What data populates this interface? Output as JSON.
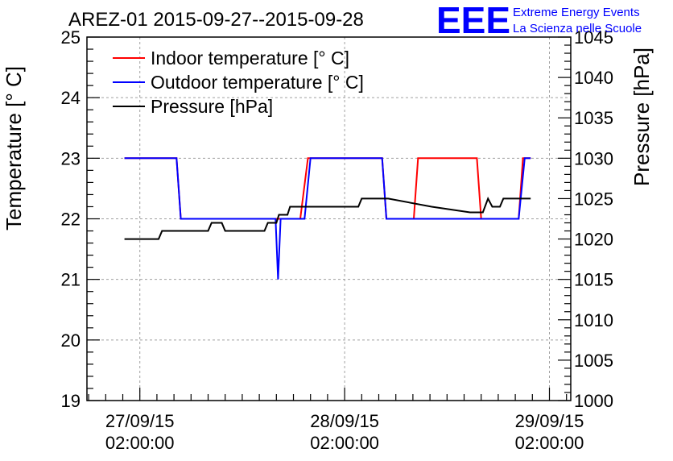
{
  "chart_data": {
    "type": "line",
    "title": "AREZ-01 2015-09-27--2015-09-28",
    "logo_text": "EEE",
    "brand_lines": [
      "Extreme Energy Events",
      "La Scienza nelle Scuole"
    ],
    "brand_color": "#0000ff",
    "y_left_label": "Temperature [° C]",
    "y_right_label": "Pressure [hPa]",
    "y_left_range": [
      19,
      25
    ],
    "y_right_range": [
      1000,
      1045
    ],
    "y_left_ticks": [
      "19",
      "20",
      "21",
      "22",
      "23",
      "24",
      "25"
    ],
    "y_right_ticks": [
      "1000",
      "1005",
      "1010",
      "1015",
      "1020",
      "1025",
      "1030",
      "1035",
      "1040",
      "1045"
    ],
    "x_ticks": [
      {
        "x": 0,
        "date": "27/09/15",
        "time": "02:00:00"
      },
      {
        "x": 24,
        "date": "28/09/15",
        "time": "02:00:00"
      },
      {
        "x": 48,
        "date": "29/09/15",
        "time": "02:00:00"
      }
    ],
    "x_range": [
      -6.2,
      50.5
    ],
    "grid": true,
    "legend_position": "top-left",
    "series": [
      {
        "name": "Indoor temperature [° C]",
        "axis": "left",
        "color": "#ff0000",
        "points": [
          [
            -1.8,
            23
          ],
          [
            4.3,
            23
          ],
          [
            4.8,
            22
          ],
          [
            18.8,
            22
          ],
          [
            19.7,
            23
          ],
          [
            28.4,
            23
          ],
          [
            28.9,
            22
          ],
          [
            32.1,
            22
          ],
          [
            32.6,
            23
          ],
          [
            39.5,
            23
          ],
          [
            40.0,
            22
          ],
          [
            44.4,
            22
          ],
          [
            44.9,
            23
          ],
          [
            45.8,
            23
          ]
        ]
      },
      {
        "name": "Outdoor temperature [° C]",
        "axis": "left",
        "color": "#0000ff",
        "points": [
          [
            -1.8,
            23
          ],
          [
            4.3,
            23
          ],
          [
            4.8,
            22
          ],
          [
            15.9,
            22
          ],
          [
            16.2,
            21
          ],
          [
            16.5,
            22
          ],
          [
            19.2,
            22
          ],
          [
            19.3,
            22.0
          ],
          [
            20.0,
            23
          ],
          [
            28.4,
            23
          ],
          [
            28.9,
            22
          ],
          [
            44.4,
            22
          ],
          [
            45.1,
            23
          ],
          [
            45.8,
            23
          ]
        ]
      },
      {
        "name": "Pressure [hPa]",
        "axis": "right",
        "color": "#000000",
        "points": [
          [
            -1.8,
            1020
          ],
          [
            2.2,
            1020
          ],
          [
            2.6,
            1021
          ],
          [
            8.0,
            1021
          ],
          [
            8.4,
            1022
          ],
          [
            9.6,
            1022
          ],
          [
            10.0,
            1021
          ],
          [
            14.6,
            1021
          ],
          [
            15.0,
            1022
          ],
          [
            16.0,
            1022
          ],
          [
            16.3,
            1023
          ],
          [
            17.3,
            1023
          ],
          [
            17.6,
            1024
          ],
          [
            20.1,
            1024
          ],
          [
            25.6,
            1024
          ],
          [
            26.0,
            1025
          ],
          [
            29.1,
            1025
          ],
          [
            34.2,
            1024
          ],
          [
            38.7,
            1023.3
          ],
          [
            40.2,
            1023.3
          ],
          [
            40.8,
            1025
          ],
          [
            41.3,
            1024
          ],
          [
            42.2,
            1024
          ],
          [
            42.6,
            1025
          ],
          [
            45.8,
            1025
          ]
        ]
      }
    ]
  }
}
